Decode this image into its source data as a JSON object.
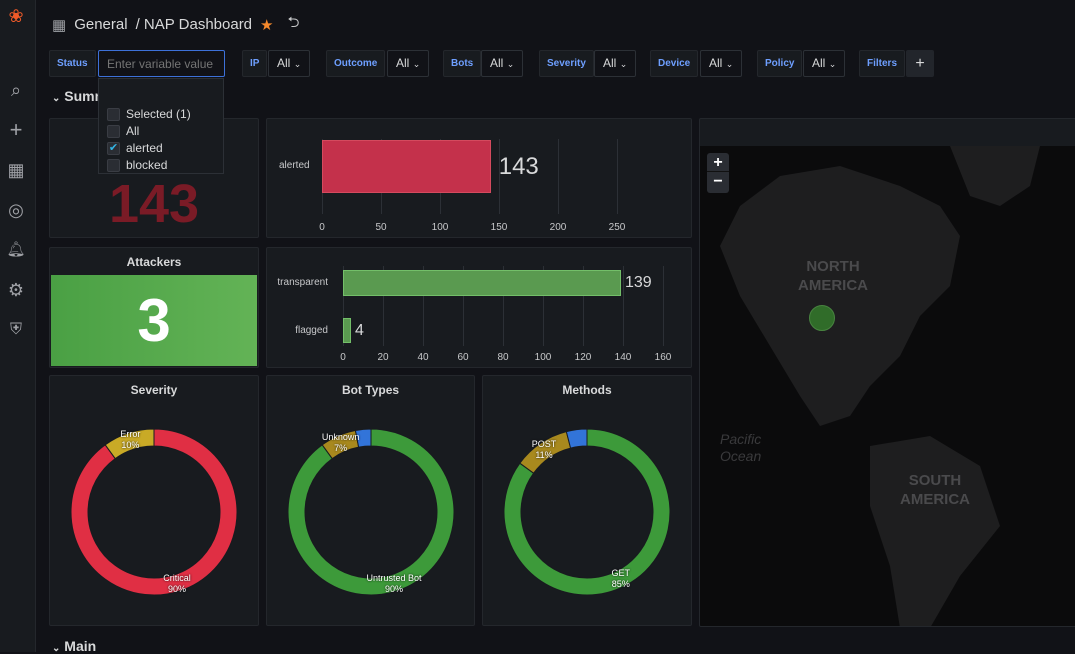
{
  "header": {
    "breadcrumb_root": "General",
    "breadcrumb_sep": "/ ",
    "dashboard": "NAP Dashboard"
  },
  "variables": [
    {
      "label": "Status",
      "placeholder": "Enter variable value"
    },
    {
      "label": "IP",
      "value": "All"
    },
    {
      "label": "Outcome",
      "value": "All"
    },
    {
      "label": "Bots",
      "value": "All"
    },
    {
      "label": "Severity",
      "value": "All"
    },
    {
      "label": "Device",
      "value": "All"
    },
    {
      "label": "Policy",
      "value": "All"
    },
    {
      "label": "Filters",
      "add": "+"
    }
  ],
  "status_dropdown": {
    "selected": "Selected (1)",
    "options": [
      {
        "label": "All",
        "checked": false
      },
      {
        "label": "alerted",
        "checked": true
      },
      {
        "label": "blocked",
        "checked": false
      }
    ]
  },
  "rows": {
    "summary": "Summary",
    "main": "Main"
  },
  "status_stat": {
    "value": "143",
    "color": "#e02f44"
  },
  "alerted_bar": {
    "label": "alerted",
    "value": 143,
    "value_text": "143",
    "ticks": [
      "0",
      "50",
      "100",
      "150",
      "200",
      "250"
    ],
    "max": 250,
    "color": "#c4314b"
  },
  "attackers": {
    "title": "Attackers",
    "value": "3",
    "color": "#56a64b"
  },
  "outcome_bars": {
    "bars": [
      {
        "label": "transparent",
        "value": 139,
        "value_text": "139"
      },
      {
        "label": "flagged",
        "value": 4,
        "value_text": "4"
      }
    ],
    "ticks": [
      "0",
      "20",
      "40",
      "60",
      "80",
      "100",
      "120",
      "140",
      "160"
    ],
    "max": 160,
    "color": "#56a64b"
  },
  "severity": {
    "title": "Severity",
    "slices": [
      {
        "label": "Critical",
        "pct": "90%",
        "value": 90,
        "color": "#e02f44"
      },
      {
        "label": "Error",
        "pct": "10%",
        "value": 10,
        "color": "#c9aa26"
      }
    ]
  },
  "bot_types": {
    "title": "Bot Types",
    "slices": [
      {
        "label": "Untrusted Bot",
        "pct": "90%",
        "value": 90,
        "color": "#3d9a3a"
      },
      {
        "label": "Unknown",
        "pct": "7%",
        "value": 7,
        "color": "#a8891e"
      },
      {
        "label": "",
        "pct": "",
        "value": 3,
        "color": "#3274d9"
      }
    ]
  },
  "methods": {
    "title": "Methods",
    "slices": [
      {
        "label": "GET",
        "pct": "85%",
        "value": 85,
        "color": "#3d9a3a"
      },
      {
        "label": "POST",
        "pct": "11%",
        "value": 11,
        "color": "#a8891e"
      },
      {
        "label": "",
        "pct": "",
        "value": 4,
        "color": "#3274d9"
      }
    ]
  },
  "map": {
    "zoom_in": "+",
    "zoom_out": "−",
    "labels": [
      "NORTH\nAMERICA",
      "Pacific\nOcean",
      "SOUTH\nAMERICA"
    ],
    "marker_color": "#37872d"
  }
}
